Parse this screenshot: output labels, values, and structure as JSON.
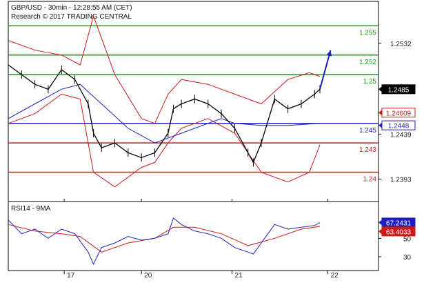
{
  "header": {
    "line1": "GBP/USD - 30min - 12:28:55 AM (CET)",
    "line2": "Research © 2017 TRADING CENTRAL"
  },
  "chart_data": {
    "type": "line",
    "price_panel": {
      "ylim": [
        1.237,
        1.2575
      ],
      "y_ticks": [
        "1.2532",
        "1.2485",
        "1.2439",
        "1.2393"
      ],
      "y_tick_values": [
        1.2532,
        1.2485,
        1.2439,
        1.2393
      ],
      "x_ticks": [
        "17",
        "20",
        "21",
        "22"
      ],
      "x_tick_values": [
        16,
        45,
        79,
        115
      ],
      "x_range": [
        -5,
        134
      ],
      "resistance_levels": [
        {
          "label": "1.255",
          "value": 1.255,
          "color": "#1a9a1a"
        },
        {
          "label": "1.252",
          "value": 1.252,
          "color": "#1a9a1a"
        },
        {
          "label": "1.25",
          "value": 1.25,
          "color": "#1a9a1a"
        }
      ],
      "pivot_level": {
        "label": "1.245",
        "value": 1.245,
        "color": "#1f1fbf"
      },
      "support_levels": [
        {
          "label": "1.243",
          "value": 1.243,
          "color": "#cc1a1a"
        },
        {
          "label": "1.24",
          "value": 1.24,
          "color": "#cc1a1a"
        }
      ],
      "value_tags": [
        {
          "label": "1.2485",
          "value": 1.2485,
          "bg": "#000000",
          "fg": "#ffffff"
        },
        {
          "label": "1.24609",
          "value": 1.2461,
          "bg": "#ffffff",
          "fg": "#cc1a1a"
        },
        {
          "label": "1.2448",
          "value": 1.2448,
          "bg": "#ffffff",
          "fg": "#1f1fbf"
        }
      ],
      "price": {
        "x": [
          -5,
          0,
          5,
          10,
          15,
          20,
          25,
          27,
          30,
          35,
          40,
          45,
          50,
          55,
          57,
          60,
          65,
          70,
          75,
          80,
          85,
          87,
          90,
          95,
          100,
          105,
          110,
          112
        ],
        "y": [
          1.251,
          1.25,
          1.249,
          1.2485,
          1.2505,
          1.2495,
          1.247,
          1.244,
          1.2425,
          1.243,
          1.242,
          1.2415,
          1.242,
          1.244,
          1.2465,
          1.247,
          1.2475,
          1.247,
          1.246,
          1.2445,
          1.242,
          1.241,
          1.243,
          1.2475,
          1.2465,
          1.247,
          1.248,
          1.2485
        ]
      },
      "moving_average": {
        "x": [
          -5,
          5,
          15,
          22,
          30,
          40,
          50,
          60,
          70,
          75,
          80,
          90,
          100,
          112
        ],
        "y": [
          1.2455,
          1.247,
          1.2485,
          1.249,
          1.247,
          1.2445,
          1.243,
          1.244,
          1.245,
          1.2455,
          1.245,
          1.2448,
          1.2448,
          1.245
        ]
      },
      "bollinger_upper": {
        "x": [
          -5,
          5,
          15,
          22,
          27,
          35,
          45,
          50,
          55,
          60,
          70,
          80,
          90,
          100,
          108,
          112
        ],
        "y": [
          1.2535,
          1.2525,
          1.252,
          1.251,
          1.256,
          1.25,
          1.2455,
          1.245,
          1.248,
          1.2495,
          1.249,
          1.248,
          1.247,
          1.2495,
          1.2502,
          1.2498
        ]
      },
      "bollinger_lower": {
        "x": [
          -5,
          5,
          15,
          22,
          27,
          35,
          45,
          50,
          55,
          60,
          70,
          80,
          90,
          100,
          108,
          112
        ],
        "y": [
          1.245,
          1.246,
          1.248,
          1.2475,
          1.24,
          1.2385,
          1.2405,
          1.241,
          1.243,
          1.2445,
          1.2455,
          1.244,
          1.24,
          1.239,
          1.24,
          1.2428
        ]
      },
      "arrow": {
        "from": [
          112,
          1.2485
        ],
        "to": [
          116,
          1.2525
        ],
        "color": "#1f1fbf"
      }
    },
    "rsi_panel": {
      "title": "RSI14 - 9MA",
      "ylim": [
        15,
        90
      ],
      "y_ticks": [
        "50",
        "30"
      ],
      "y_tick_values": [
        50,
        30
      ],
      "value_tags": [
        {
          "label": "67.2431",
          "value": 67.2,
          "bg": "#1f1fbf",
          "fg": "#ffffff"
        },
        {
          "label": "63.4033",
          "value": 63.4,
          "bg": "#cc1a1a",
          "fg": "#ffffff"
        }
      ],
      "rsi": {
        "x": [
          -5,
          0,
          5,
          10,
          15,
          20,
          25,
          27,
          30,
          35,
          40,
          45,
          50,
          55,
          57,
          60,
          65,
          70,
          75,
          80,
          85,
          87,
          90,
          95,
          100,
          105,
          110,
          112
        ],
        "y": [
          70,
          55,
          60,
          50,
          60,
          55,
          35,
          22,
          40,
          45,
          52,
          48,
          50,
          55,
          72,
          65,
          58,
          55,
          50,
          40,
          35,
          33,
          45,
          65,
          60,
          62,
          64,
          67
        ]
      },
      "signal": {
        "x": [
          -5,
          5,
          15,
          22,
          30,
          40,
          50,
          57,
          65,
          75,
          85,
          95,
          105,
          112
        ],
        "y": [
          65,
          58,
          55,
          52,
          35,
          45,
          50,
          62,
          62,
          55,
          42,
          50,
          60,
          63
        ]
      }
    }
  }
}
